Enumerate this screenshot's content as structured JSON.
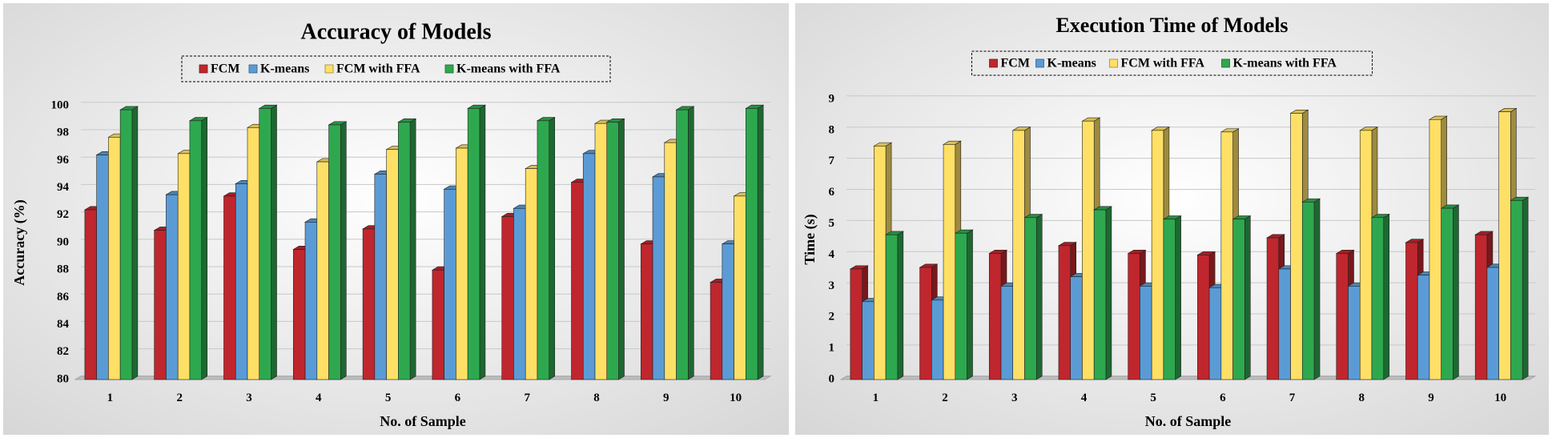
{
  "chart_data": [
    {
      "type": "bar",
      "title": "Accuracy of Models",
      "xlabel": "No. of Sample",
      "ylabel": "Accuracy (%)",
      "categories": [
        "1",
        "2",
        "3",
        "4",
        "5",
        "6",
        "7",
        "8",
        "9",
        "10"
      ],
      "ylim": [
        80,
        100
      ],
      "yticks": [
        80,
        82,
        84,
        86,
        88,
        90,
        92,
        94,
        96,
        98,
        100
      ],
      "legend": "top-center",
      "grid": true,
      "series": [
        {
          "name": "FCM",
          "color": "#c0262d",
          "values": [
            92.4,
            90.9,
            93.4,
            89.5,
            91.0,
            88.0,
            91.9,
            94.4,
            89.9,
            87.1
          ]
        },
        {
          "name": "K-means",
          "color": "#5b9bd5",
          "values": [
            96.4,
            93.5,
            94.3,
            91.5,
            95.0,
            93.9,
            92.5,
            96.5,
            94.8,
            89.9
          ]
        },
        {
          "name": "FCM with FFA",
          "color": "#ffe066",
          "values": [
            97.7,
            96.5,
            98.4,
            95.9,
            96.8,
            96.9,
            95.4,
            98.7,
            97.3,
            93.4
          ]
        },
        {
          "name": "K-means with FFA",
          "color": "#2ea84f",
          "values": [
            99.7,
            98.9,
            99.8,
            98.6,
            98.8,
            99.8,
            98.9,
            98.8,
            99.7,
            99.8
          ]
        }
      ]
    },
    {
      "type": "bar",
      "title": "Execution Time of Models",
      "xlabel": "No. of Sample",
      "ylabel": "Time (s)",
      "categories": [
        "1",
        "2",
        "3",
        "4",
        "5",
        "6",
        "7",
        "8",
        "9",
        "10"
      ],
      "ylim": [
        0,
        9
      ],
      "yticks": [
        0,
        1,
        2,
        3,
        4,
        5,
        6,
        7,
        8,
        9
      ],
      "legend": "top-center",
      "grid": true,
      "series": [
        {
          "name": "FCM",
          "color": "#c0262d",
          "values": [
            3.55,
            3.6,
            4.05,
            4.3,
            4.05,
            4.0,
            4.55,
            4.05,
            4.4,
            4.65
          ]
        },
        {
          "name": "K-means",
          "color": "#5b9bd5",
          "values": [
            2.5,
            2.55,
            3.0,
            3.3,
            3.0,
            2.95,
            3.55,
            3.0,
            3.35,
            3.6
          ]
        },
        {
          "name": "FCM with FFA",
          "color": "#ffe066",
          "values": [
            7.5,
            7.55,
            8.0,
            8.3,
            8.0,
            7.95,
            8.55,
            8.0,
            8.35,
            8.6
          ]
        },
        {
          "name": "K-means with FFA",
          "color": "#2ea84f",
          "values": [
            4.65,
            4.7,
            5.2,
            5.45,
            5.15,
            5.15,
            5.7,
            5.2,
            5.5,
            5.75
          ]
        }
      ]
    }
  ]
}
